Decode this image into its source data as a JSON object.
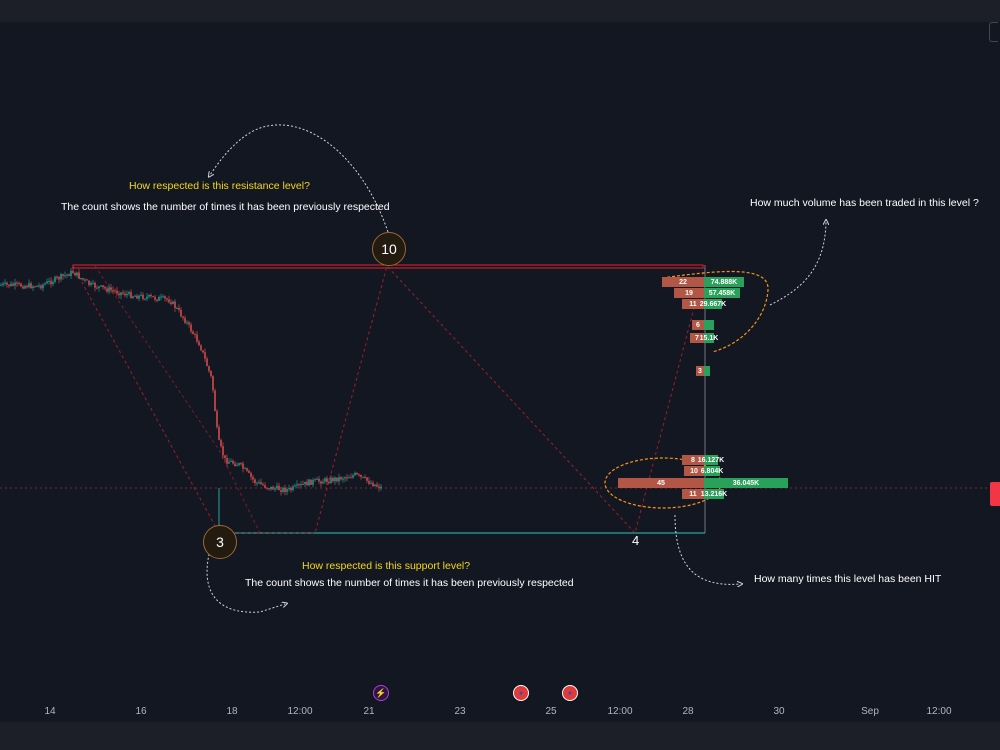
{
  "colors": {
    "background": "#131722",
    "resistance": "#c2202a",
    "support": "#26a69a",
    "up_candle": "#26a69a",
    "down_candle": "#ef5350",
    "sell_volume": "#b25745",
    "buy_volume": "#2aa15a",
    "annotation_yellow": "#f5d71a",
    "orange_outline": "#f7931a"
  },
  "annotations": {
    "resistance_question": "How respected is this resistance level?",
    "resistance_count": "The count shows the number of times it has been previously respected",
    "support_question": "How respected is this support level?",
    "support_count": "The count shows the number of times it has been previously respected",
    "volume_question": "How much volume has been traded in this level ?",
    "hits_question": "How many times this level has been HIT"
  },
  "badges": {
    "resistance_count": "10",
    "support_count": "3",
    "support_hit_label": "4"
  },
  "x_axis": {
    "ticks": [
      "14",
      "16",
      "18",
      "12:00",
      "21",
      "23",
      "25",
      "12:00",
      "28",
      "30",
      "Sep",
      "12:00"
    ]
  },
  "event_icons": [
    {
      "name": "lightning-icon",
      "glyph": "⚡"
    },
    {
      "name": "us-flag-icon",
      "glyph": "●"
    },
    {
      "name": "us-flag-icon",
      "glyph": "●"
    }
  ],
  "chart_data": {
    "type": "candlestick",
    "x_ticks": [
      "14",
      "16",
      "18",
      "12:00",
      "21",
      "23",
      "25",
      "12:00",
      "28",
      "30",
      "Sep",
      "12:00"
    ],
    "levels": [
      {
        "kind": "resistance",
        "respected_count": 10
      },
      {
        "kind": "support",
        "respected_count": 3,
        "hit_count": 4
      }
    ],
    "volume_profile": [
      {
        "sell_count": 22,
        "buy_volume": "74.888K"
      },
      {
        "sell_count": 19,
        "buy_volume": "57.458K"
      },
      {
        "sell_count": 11,
        "buy_volume": "29.667K"
      },
      {
        "sell_count": 6,
        "buy_volume": ""
      },
      {
        "sell_count": 7,
        "buy_volume": "15.1K"
      },
      {
        "sell_count": 3,
        "buy_volume": ""
      },
      {
        "sell_count": 8,
        "buy_volume": "16.127K"
      },
      {
        "sell_count": 10,
        "buy_volume": "6.804K"
      },
      {
        "sell_count": 45,
        "buy_volume": "36.045K"
      },
      {
        "sell_count": 11,
        "buy_volume": "13.216K"
      }
    ]
  }
}
